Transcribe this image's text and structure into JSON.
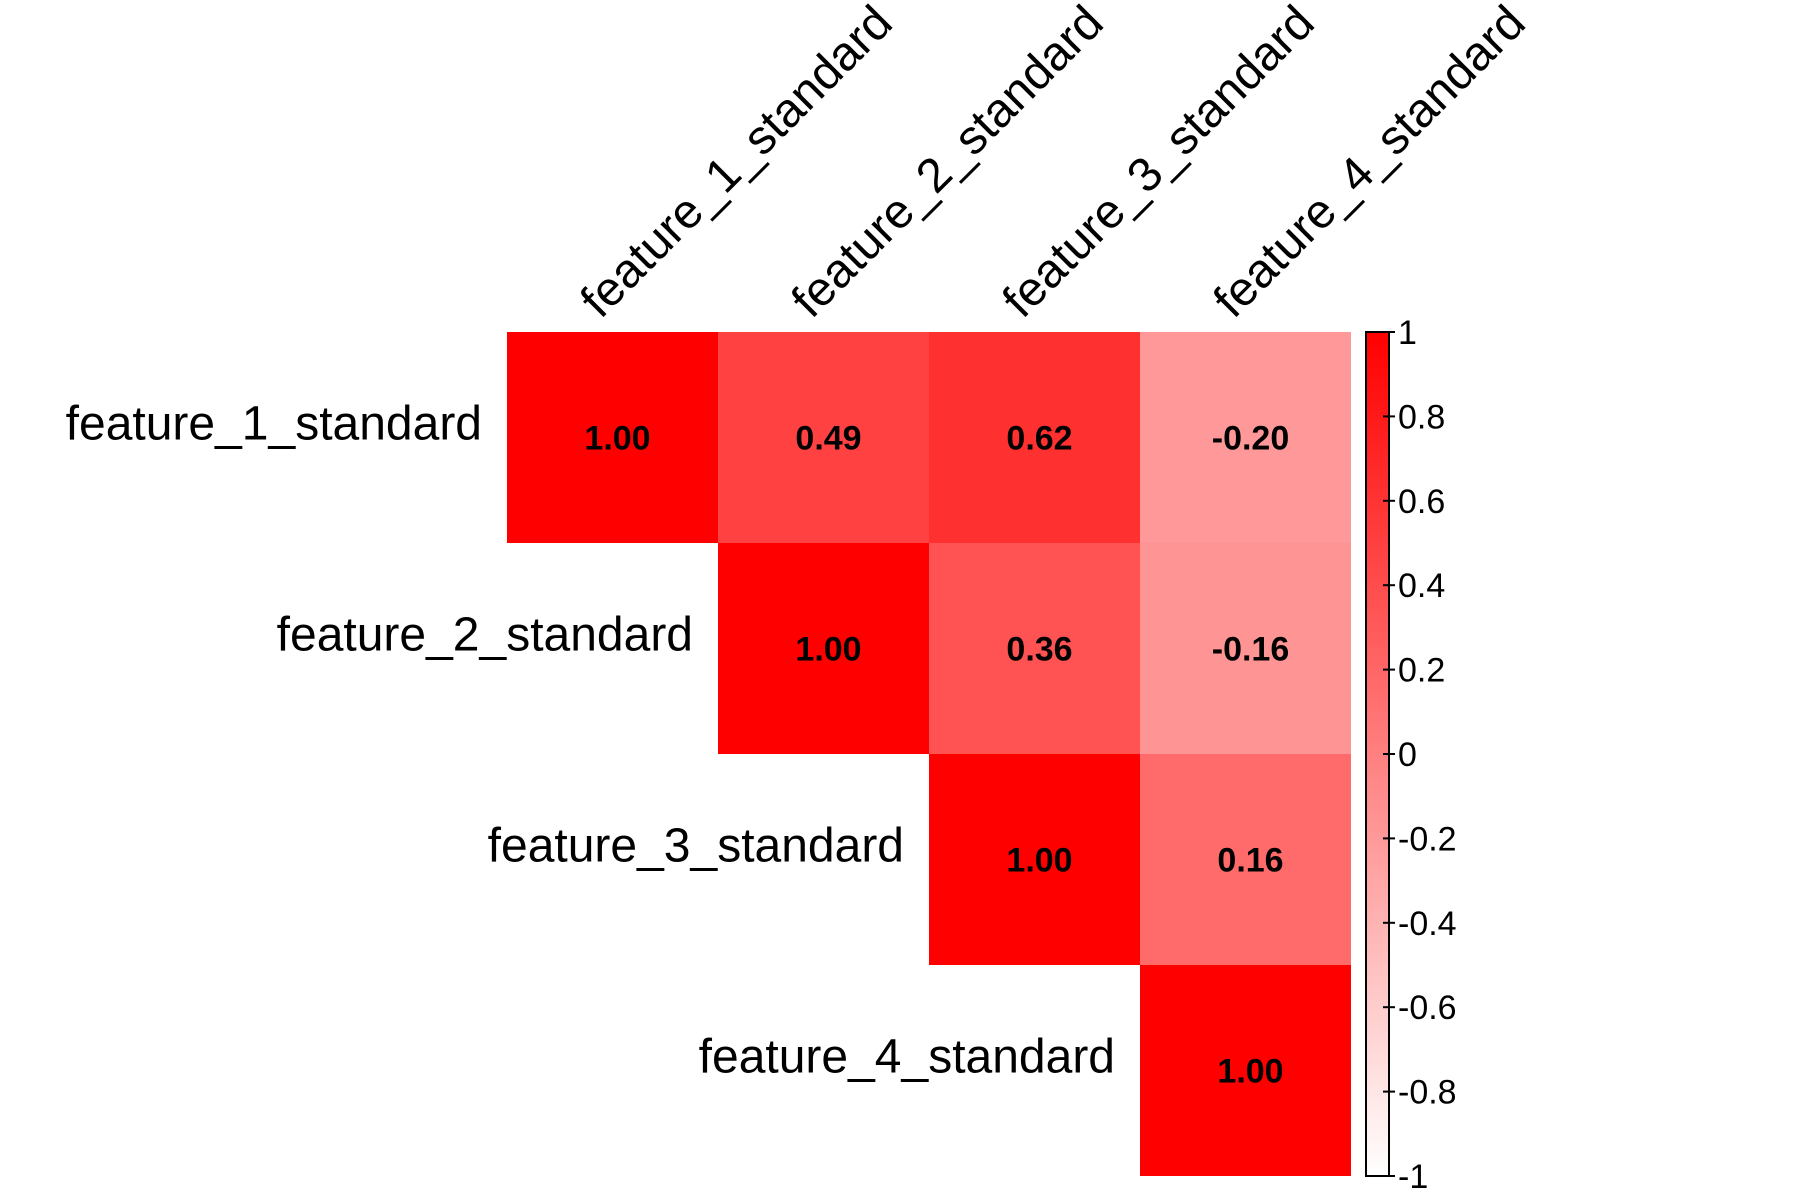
{
  "chart_data": {
    "type": "heatmap",
    "layout": "upper-triangle",
    "title": "",
    "xlabel": "",
    "ylabel": "",
    "grid": false,
    "legend": "right",
    "variables": [
      "feature_1_standard",
      "feature_2_standard",
      "feature_3_standard",
      "feature_4_standard"
    ],
    "matrix": [
      [
        1.0,
        0.49,
        0.62,
        -0.2
      ],
      [
        null,
        1.0,
        0.36,
        -0.16
      ],
      [
        null,
        null,
        1.0,
        0.16
      ],
      [
        null,
        null,
        null,
        1.0
      ]
    ],
    "value_format": "0.00",
    "color_scale": {
      "min": -1,
      "max": 1,
      "low_color": "#ffffff",
      "high_color": "#ff0000"
    },
    "colorbar_ticks": [
      {
        "value": 1,
        "label": "1"
      },
      {
        "value": 0.8,
        "label": "0.8"
      },
      {
        "value": 0.6,
        "label": "0.6"
      },
      {
        "value": 0.4,
        "label": "0.4"
      },
      {
        "value": 0.2,
        "label": "0.2"
      },
      {
        "value": 0,
        "label": "0"
      },
      {
        "value": -0.2,
        "label": "-0.2"
      },
      {
        "value": -0.4,
        "label": "-0.4"
      },
      {
        "value": -0.6,
        "label": "-0.6"
      },
      {
        "value": -0.8,
        "label": "-0.8"
      },
      {
        "value": -1,
        "label": "-1"
      }
    ]
  }
}
